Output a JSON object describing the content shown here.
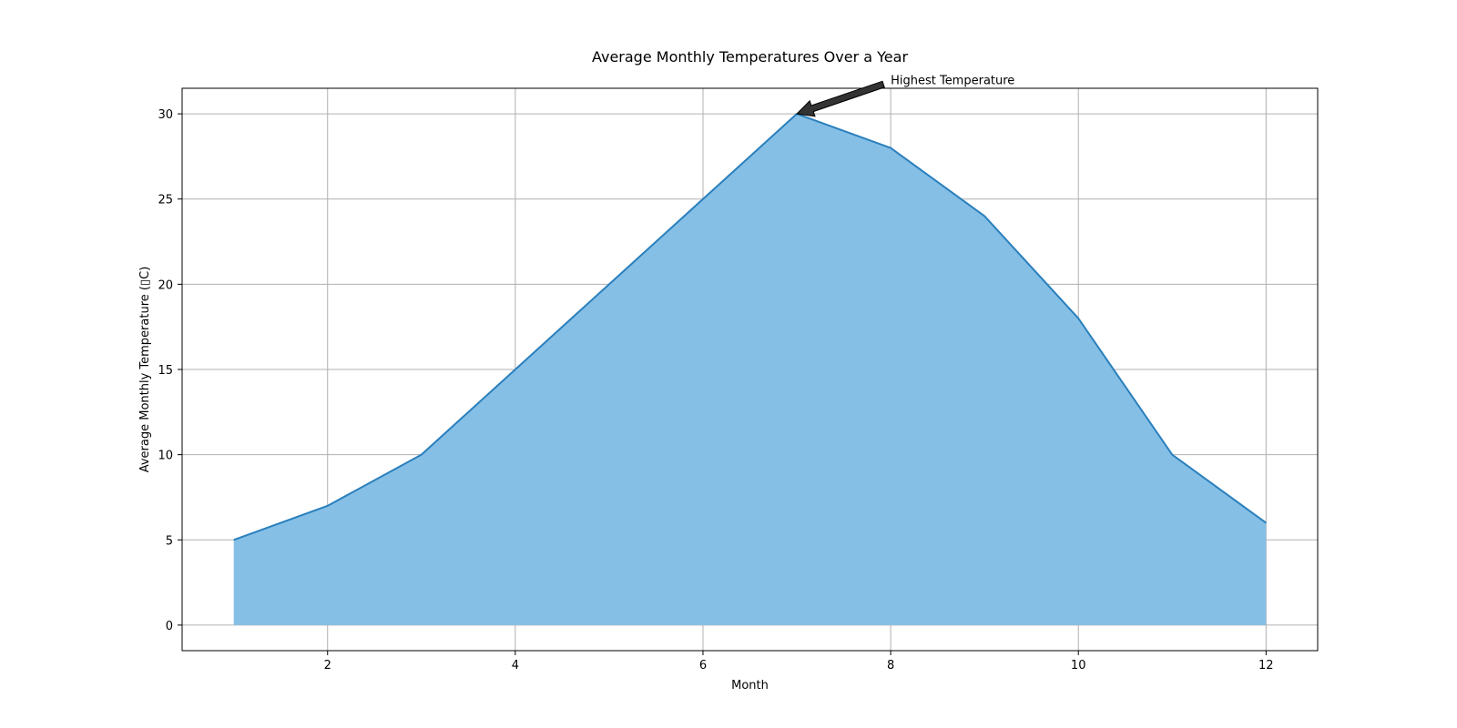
{
  "chart_data": {
    "type": "area",
    "title": "Average Monthly Temperatures Over a Year",
    "xlabel": "Month",
    "ylabel": "Average Monthly Temperature (▯C)",
    "x": [
      1,
      2,
      3,
      4,
      5,
      6,
      7,
      8,
      9,
      10,
      11,
      12
    ],
    "series": [
      {
        "values": [
          5,
          7,
          10,
          15,
          20,
          25,
          30,
          28,
          24,
          18,
          10,
          6
        ]
      }
    ],
    "xlim": [
      0.45,
      12.55
    ],
    "ylim": [
      -1.5,
      31.5
    ],
    "xticks": [
      2,
      4,
      6,
      8,
      10,
      12
    ],
    "yticks": [
      0,
      5,
      10,
      15,
      20,
      25,
      30
    ],
    "grid": true,
    "annotation": {
      "text": "Highest Temperature",
      "target": {
        "x": 7,
        "y": 30
      },
      "text_position": {
        "x": 8,
        "y": 32
      }
    },
    "colors": {
      "fill": "#85bfe6",
      "line": "#2a7fbc",
      "grid": "#b0b0b0",
      "arrow": "#333333"
    }
  }
}
